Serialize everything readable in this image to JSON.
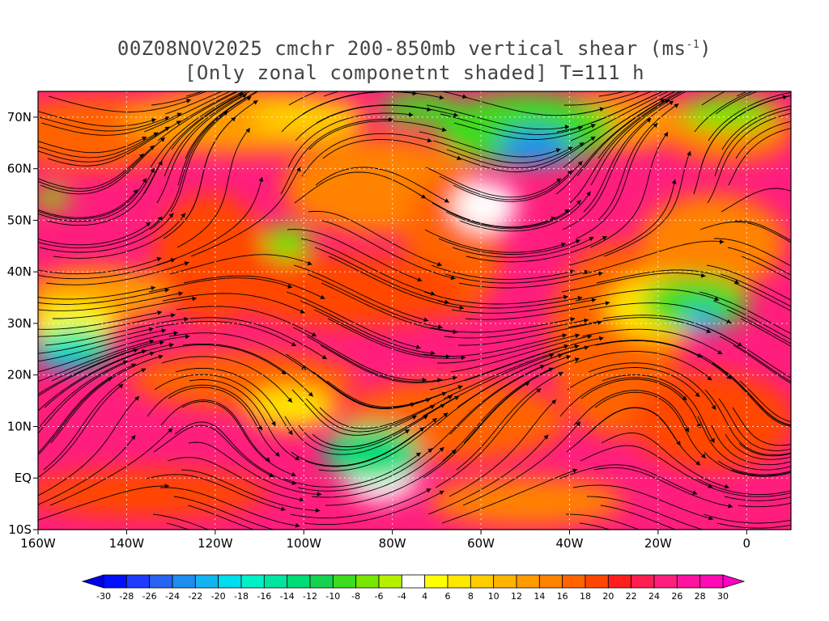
{
  "title": {
    "line1_prefix": "00Z08NOV2025 cmchr 200-850mb vertical shear (ms",
    "line1_sup": "-1",
    "line1_suffix": ")",
    "line2": "[Only zonal componetnt shaded] T=111 h"
  },
  "map": {
    "lon_range": [
      -160,
      10
    ],
    "lat_range": [
      -10,
      75
    ],
    "lat_labels": [
      {
        "value": 70,
        "text": "70N"
      },
      {
        "value": 60,
        "text": "60N"
      },
      {
        "value": 50,
        "text": "50N"
      },
      {
        "value": 40,
        "text": "40N"
      },
      {
        "value": 30,
        "text": "30N"
      },
      {
        "value": 20,
        "text": "20N"
      },
      {
        "value": 10,
        "text": "10N"
      },
      {
        "value": 0,
        "text": "EQ"
      },
      {
        "value": -10,
        "text": "10S"
      }
    ],
    "lon_labels": [
      {
        "value": -160,
        "text": "160W"
      },
      {
        "value": -140,
        "text": "140W"
      },
      {
        "value": -120,
        "text": "120W"
      },
      {
        "value": -100,
        "text": "100W"
      },
      {
        "value": -80,
        "text": "80W"
      },
      {
        "value": -60,
        "text": "60W"
      },
      {
        "value": -40,
        "text": "40W"
      },
      {
        "value": -20,
        "text": "20W"
      },
      {
        "value": 0,
        "text": "0"
      }
    ]
  },
  "colorbar": {
    "labels": [
      "-30",
      "-28",
      "-26",
      "-24",
      "-22",
      "-20",
      "-18",
      "-16",
      "-14",
      "-12",
      "-10",
      "-8",
      "-6",
      "-4",
      "4",
      "6",
      "8",
      "10",
      "12",
      "14",
      "16",
      "18",
      "20",
      "22",
      "24",
      "26",
      "28",
      "30"
    ],
    "colors": [
      "#0010ff",
      "#1e3cff",
      "#2864f0",
      "#1e8cf0",
      "#14b4f0",
      "#00dcf0",
      "#00f0c8",
      "#00e6a0",
      "#00dc78",
      "#14d250",
      "#3cdc1e",
      "#78e600",
      "#b4f000",
      "#ffffff",
      "#ffff00",
      "#ffe600",
      "#ffcc00",
      "#ffb400",
      "#ff9b00",
      "#ff8200",
      "#ff6400",
      "#ff4600",
      "#ff1e1e",
      "#ff1e50",
      "#ff1e7d",
      "#ff14a0",
      "#ff0ab4"
    ],
    "end_low_color": "#0000e6",
    "end_high_color": "#ff00c8"
  }
}
